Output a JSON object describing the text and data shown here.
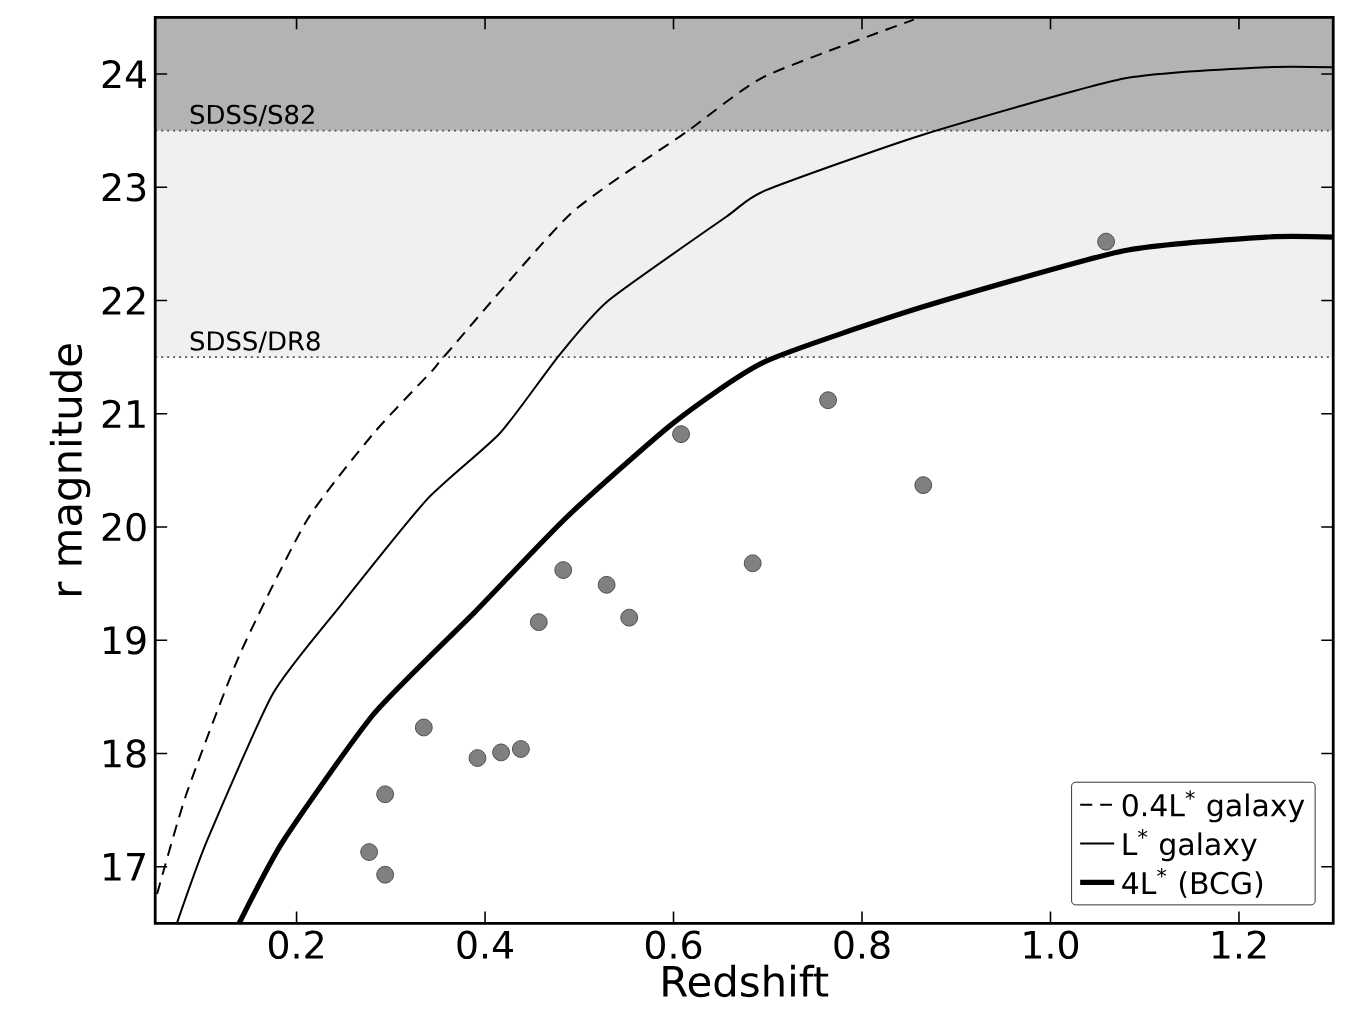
{
  "chart_data": {
    "type": "line",
    "xlabel": "Redshift",
    "ylabel": "r magnitude",
    "xlim": [
      0.05,
      1.3
    ],
    "ylim": [
      16.5,
      24.5
    ],
    "xticks": [
      0.2,
      0.4,
      0.6,
      0.8,
      {
        "value": 1.0,
        "label": "1.0"
      },
      1.2
    ],
    "yticks": [
      17,
      18,
      19,
      20,
      21,
      22,
      23,
      24
    ],
    "legend": "bottom right",
    "bands": [
      {
        "axis": "y",
        "from": 23.5,
        "to": 24.5,
        "color": "#b3b3b3"
      },
      {
        "axis": "y",
        "from": 21.5,
        "to": 23.5,
        "color": "#f0f0f0"
      }
    ],
    "ref_lines": [
      {
        "axis": "y",
        "value": 23.5,
        "label": "SDSS/S82",
        "color": "#555555",
        "line_style": "dotted"
      },
      {
        "axis": "y",
        "value": 21.5,
        "label": "SDSS/DR8",
        "color": "#555555",
        "line_style": "dotted"
      }
    ],
    "series": [
      {
        "name": "0.4L$^{*}$ galaxy",
        "color": "#000000",
        "line_style": "dashed",
        "x": [
          0.052,
          0.083,
          0.14,
          0.211,
          0.282,
          0.345,
          0.357,
          0.49,
          0.614,
          0.697,
          0.855
        ],
        "values": [
          16.76,
          17.64,
          18.88,
          20.06,
          20.83,
          21.39,
          21.51,
          22.76,
          23.49,
          23.98,
          24.48
        ]
      },
      {
        "name": "L$^{*}$ galaxy",
        "color": "#000000",
        "line_style": "solid",
        "x": [
          0.073,
          0.105,
          0.175,
          0.246,
          0.338,
          0.416,
          0.478,
          0.531,
          0.656,
          0.697,
          0.863,
          1.078,
          1.228,
          1.3
        ],
        "values": [
          16.5,
          17.23,
          18.53,
          19.3,
          20.24,
          20.83,
          21.51,
          22.0,
          22.74,
          22.97,
          23.46,
          23.96,
          24.06,
          24.06
        ]
      },
      {
        "name": "4L$^{*}$ (BCG)",
        "color": "#000000",
        "line_style": "solid",
        "x": [
          0.139,
          0.186,
          0.282,
          0.388,
          0.487,
          0.6,
          0.697,
          0.863,
          1.078,
          1.228,
          1.3
        ],
        "values": [
          16.5,
          17.23,
          18.35,
          19.24,
          20.09,
          20.92,
          21.46,
          21.94,
          22.44,
          22.56,
          22.56
        ]
      },
      {
        "type": "scatter",
        "marker": "circle",
        "color": "#808080",
        "x": [
          0.277,
          0.294,
          0.294,
          0.335,
          0.392,
          0.417,
          0.438,
          0.457,
          0.483,
          0.529,
          0.553,
          0.608,
          0.684,
          0.764,
          0.865,
          1.059
        ],
        "values": [
          17.13,
          16.93,
          17.64,
          18.23,
          17.96,
          18.01,
          18.04,
          19.16,
          19.62,
          19.49,
          19.2,
          20.82,
          19.68,
          21.12,
          20.37,
          22.52
        ]
      }
    ]
  }
}
